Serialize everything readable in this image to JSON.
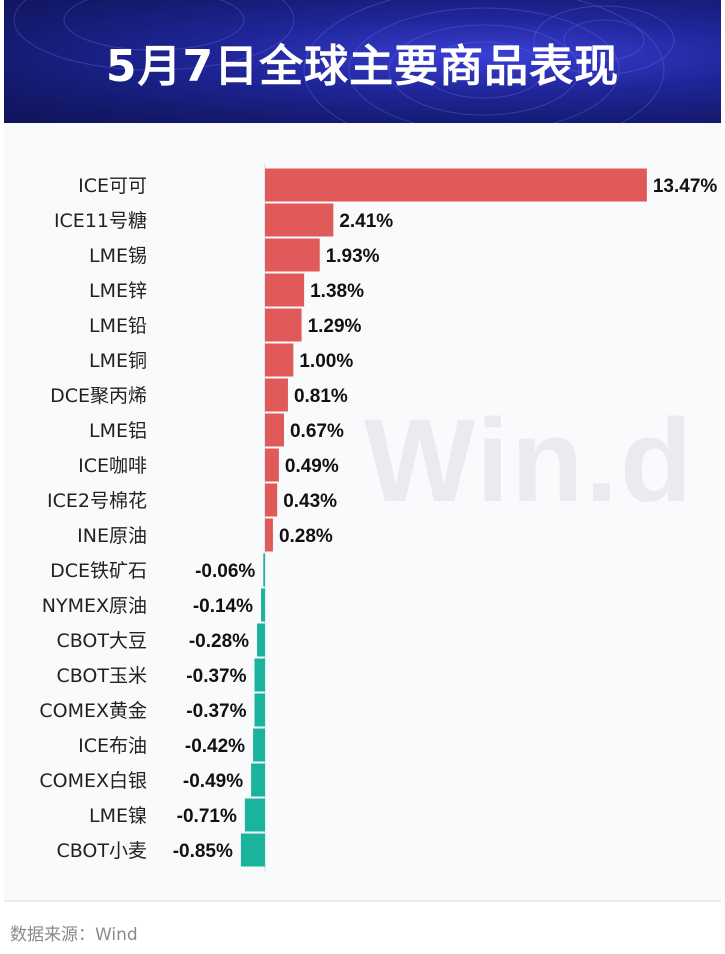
{
  "header": {
    "title": "5月7日全球主要商品表现"
  },
  "watermark": "Win.d",
  "footer": {
    "source": "数据来源：Wind"
  },
  "colors": {
    "positive": "#e05a5a",
    "negative": "#1ab39b",
    "header_bg": "#1f2597"
  },
  "chart_data": {
    "type": "bar",
    "orientation": "horizontal",
    "title": "5月7日全球主要商品表现",
    "xlabel": "",
    "ylabel": "",
    "unit": "%",
    "grid": false,
    "categories": [
      "ICE可可",
      "ICE11号糖",
      "LME锡",
      "LME锌",
      "LME铅",
      "LME铜",
      "DCE聚丙烯",
      "LME铝",
      "ICE咖啡",
      "ICE2号棉花",
      "INE原油",
      "DCE铁矿石",
      "NYMEX原油",
      "CBOT大豆",
      "CBOT玉米",
      "COMEX黄金",
      "ICE布油",
      "COMEX白银",
      "LME镍",
      "CBOT小麦"
    ],
    "values": [
      13.47,
      2.41,
      1.93,
      1.38,
      1.29,
      1.0,
      0.81,
      0.67,
      0.49,
      0.43,
      0.28,
      -0.06,
      -0.14,
      -0.28,
      -0.37,
      -0.37,
      -0.42,
      -0.49,
      -0.71,
      -0.85
    ],
    "labels": [
      "13.47%",
      "2.41%",
      "1.93%",
      "1.38%",
      "1.29%",
      "1.00%",
      "0.81%",
      "0.67%",
      "0.49%",
      "0.43%",
      "0.28%",
      "-0.06%",
      "-0.14%",
      "-0.28%",
      "-0.37%",
      "-0.37%",
      "-0.42%",
      "-0.49%",
      "-0.71%",
      "-0.85%"
    ]
  }
}
